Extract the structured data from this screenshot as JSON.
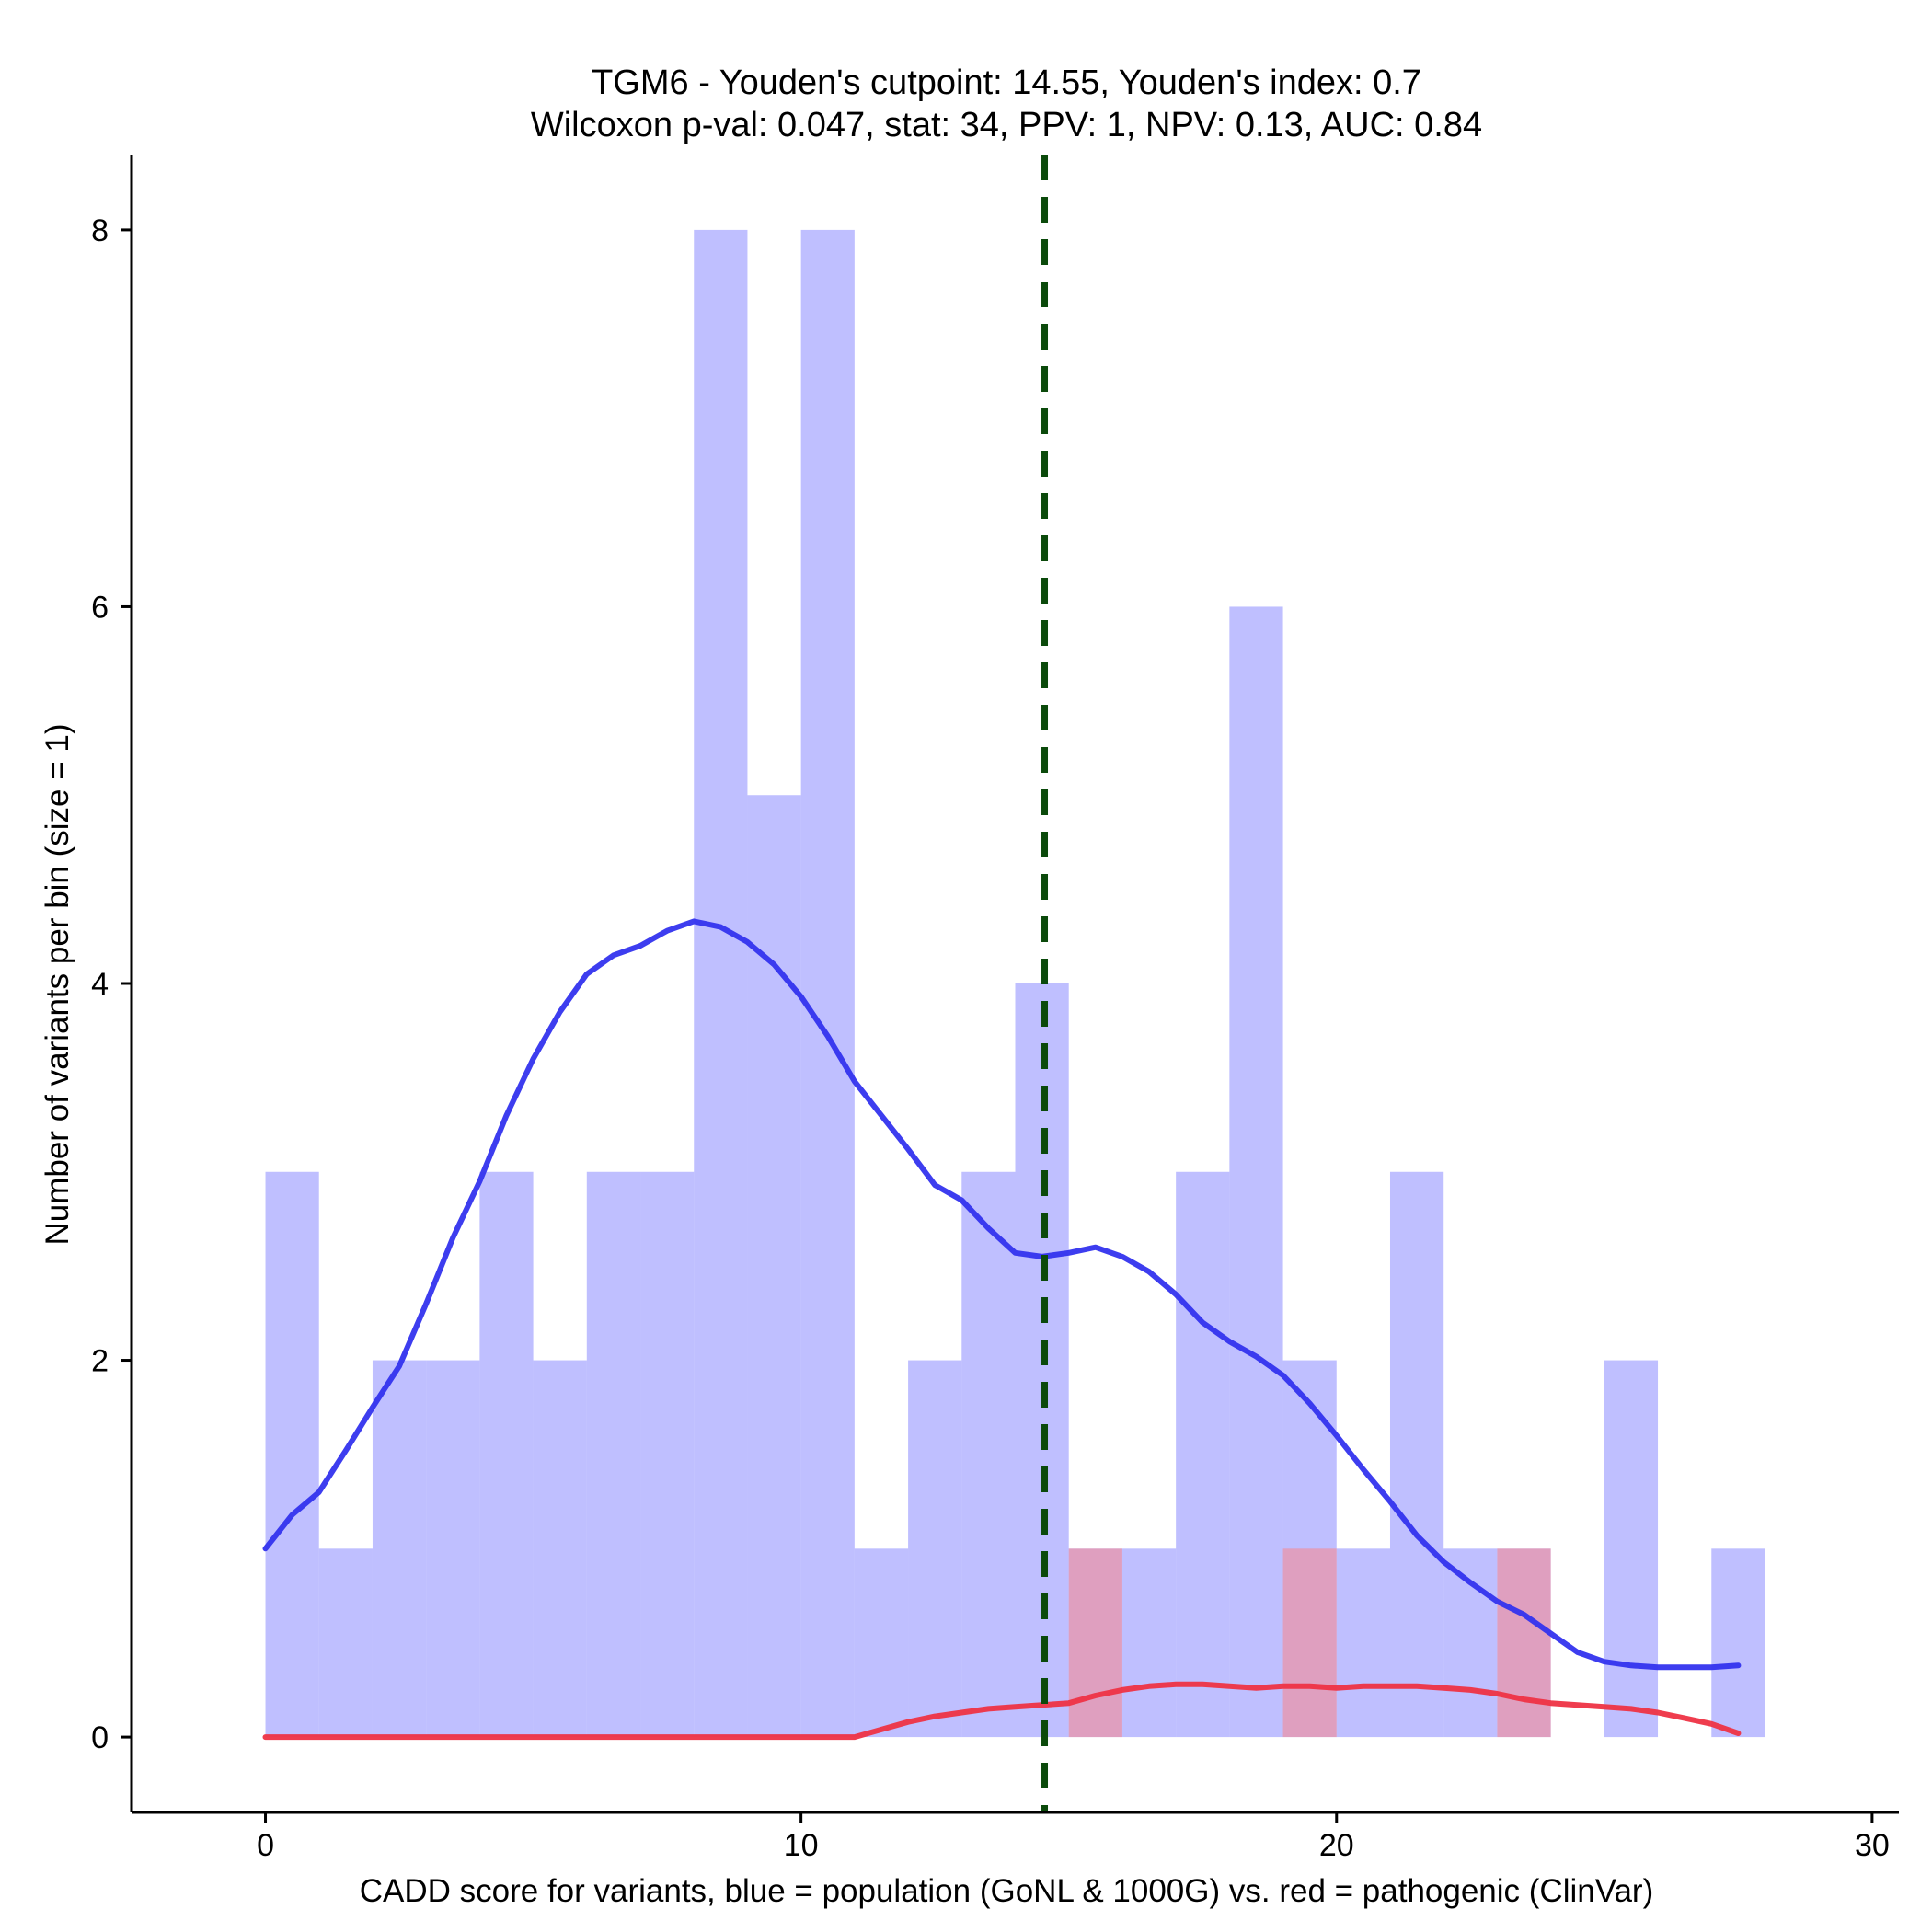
{
  "chart_data": {
    "type": "bar",
    "title_line1": "TGM6 - Youden's cutpoint: 14.55, Youden's index: 0.7",
    "title_line2": "Wilcoxon p-val: 0.047, stat: 34, PPV: 1, NPV: 0.13, AUC: 0.84",
    "xlabel": "CADD score for variants, blue = population (GoNL & 1000G) vs. red = pathogenic (ClinVar)",
    "ylabel": "Number of variants per bin (size = 1)",
    "xlim": [
      -2.5,
      30.5
    ],
    "ylim": [
      -0.4,
      8.4
    ],
    "x_ticks": [
      0,
      10,
      20,
      30
    ],
    "y_ticks": [
      0,
      2,
      4,
      6,
      8
    ],
    "bin_width": 1,
    "cutpoint": 14.55,
    "colors": {
      "population": "#8080ff",
      "pathogenic": "#ff7f7f",
      "population_density": "#3333ee",
      "pathogenic_density": "#ee3344",
      "cutpoint_line": "#0b4a0b"
    },
    "series": [
      {
        "name": "population",
        "bin_starts": [
          0,
          1,
          2,
          3,
          4,
          5,
          6,
          7,
          8,
          9,
          10,
          11,
          12,
          13,
          14,
          15,
          16,
          17,
          18,
          19,
          20,
          21,
          22,
          23,
          24,
          25,
          26,
          27
        ],
        "values": [
          3,
          1,
          2,
          2,
          3,
          2,
          3,
          3,
          8,
          5,
          8,
          1,
          2,
          3,
          4,
          1,
          1,
          3,
          6,
          2,
          1,
          3,
          1,
          1,
          0,
          2,
          0,
          1
        ]
      },
      {
        "name": "pathogenic",
        "bin_starts": [
          15,
          19,
          23
        ],
        "values": [
          1,
          1,
          1
        ]
      }
    ],
    "density_lines": [
      {
        "name": "population density",
        "x": [
          0,
          0.5,
          1,
          1.5,
          2,
          2.5,
          3,
          3.5,
          4,
          4.5,
          5,
          5.5,
          6,
          6.5,
          7,
          7.5,
          8,
          8.5,
          9,
          9.5,
          10,
          10.5,
          11,
          11.5,
          12,
          12.5,
          13,
          13.5,
          14,
          14.5,
          15,
          15.5,
          16,
          16.5,
          17,
          17.5,
          18,
          18.5,
          19,
          19.5,
          20,
          20.5,
          21,
          21.5,
          22,
          22.5,
          23,
          23.5,
          24,
          24.5,
          25,
          25.5,
          26,
          26.5,
          27,
          27.5
        ],
        "y": [
          1.0,
          1.18,
          1.3,
          1.52,
          1.75,
          1.97,
          2.3,
          2.65,
          2.95,
          3.3,
          3.6,
          3.85,
          4.05,
          4.15,
          4.2,
          4.28,
          4.33,
          4.3,
          4.22,
          4.1,
          3.93,
          3.72,
          3.48,
          3.3,
          3.12,
          2.93,
          2.85,
          2.7,
          2.57,
          2.55,
          2.57,
          2.6,
          2.55,
          2.47,
          2.35,
          2.2,
          2.1,
          2.02,
          1.92,
          1.77,
          1.6,
          1.42,
          1.25,
          1.07,
          0.93,
          0.82,
          0.72,
          0.65,
          0.55,
          0.45,
          0.4,
          0.38,
          0.37,
          0.37,
          0.37,
          0.38
        ]
      },
      {
        "name": "pathogenic density",
        "x": [
          0,
          1,
          2,
          3,
          4,
          5,
          6,
          7,
          8,
          9,
          10,
          11,
          11.5,
          12,
          12.5,
          13,
          13.5,
          14,
          14.5,
          15,
          15.5,
          16,
          16.5,
          17,
          17.5,
          18,
          18.5,
          19,
          19.5,
          20,
          20.5,
          21,
          21.5,
          22,
          22.5,
          23,
          23.5,
          24,
          24.5,
          25,
          25.5,
          26,
          26.5,
          27,
          27.5
        ],
        "y": [
          0,
          0,
          0,
          0,
          0,
          0,
          0,
          0,
          0,
          0,
          0,
          0,
          0.04,
          0.08,
          0.11,
          0.13,
          0.15,
          0.16,
          0.17,
          0.18,
          0.22,
          0.25,
          0.27,
          0.28,
          0.28,
          0.27,
          0.26,
          0.27,
          0.27,
          0.26,
          0.27,
          0.27,
          0.27,
          0.26,
          0.25,
          0.23,
          0.2,
          0.18,
          0.17,
          0.16,
          0.15,
          0.13,
          0.1,
          0.07,
          0.02
        ]
      }
    ]
  }
}
